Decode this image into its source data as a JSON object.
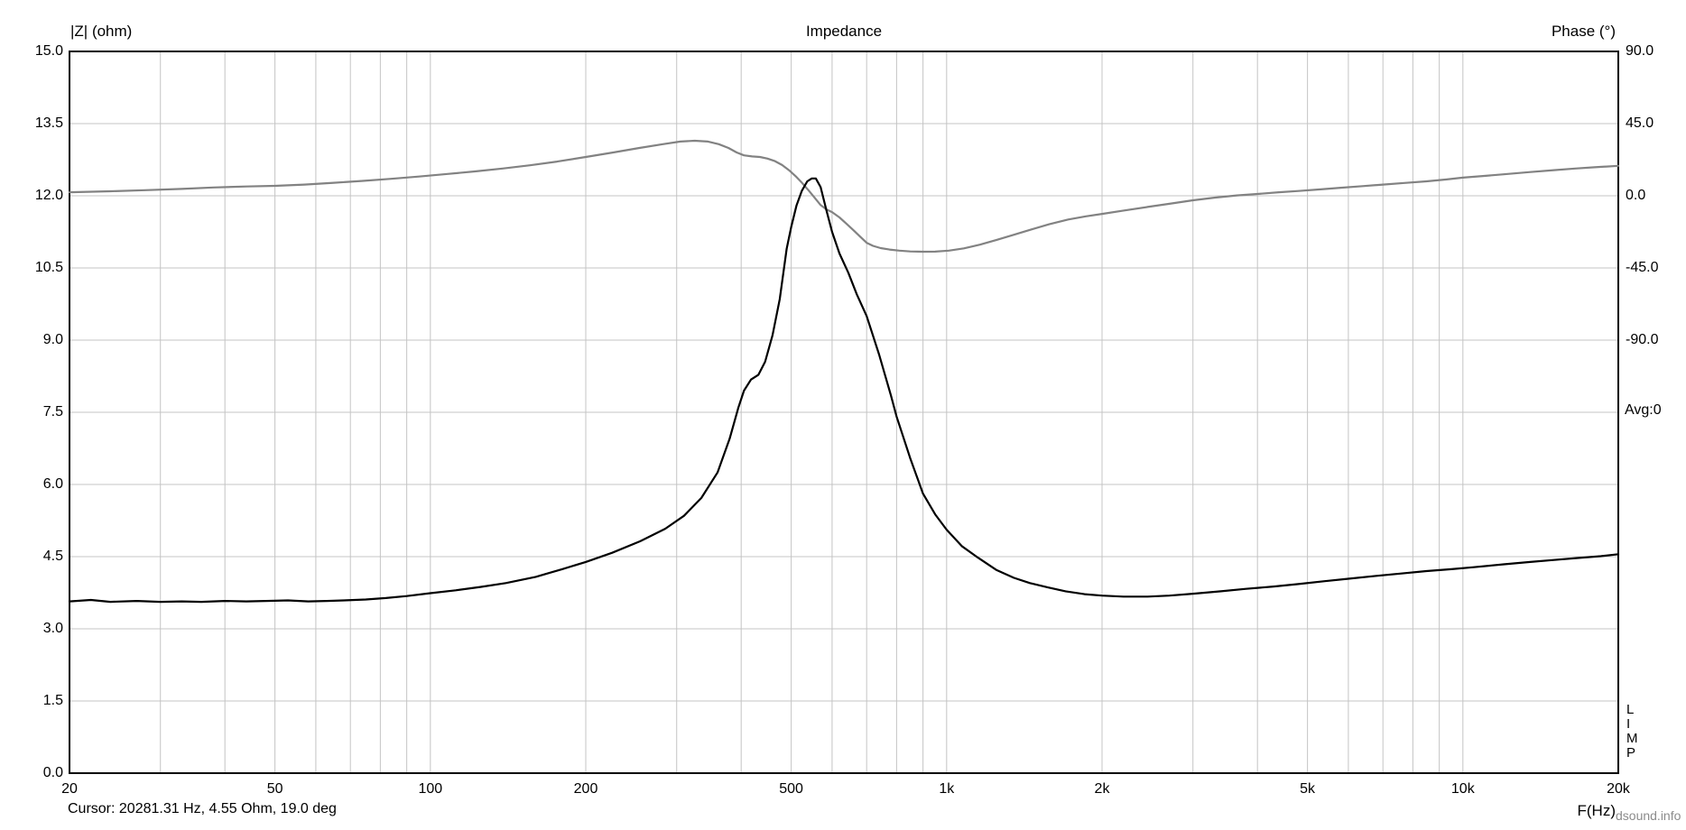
{
  "header": {
    "left_axis_label": "|Z| (ohm)",
    "title": "Impedance",
    "right_axis_label": "Phase (°)"
  },
  "side": {
    "avg_label": "Avg:0",
    "app_name_vertical": [
      "L",
      "I",
      "M",
      "P"
    ]
  },
  "footer": {
    "cursor_text": "Cursor: 20281.31 Hz, 4.55 Ohm, 19.0 deg",
    "x_axis_label": "F(Hz)",
    "watermark": "dsound.info"
  },
  "chart_data": {
    "type": "line",
    "title": "Impedance",
    "grid": true,
    "colors": {
      "background": "#ffffff",
      "grid": "#c4c4c4",
      "border": "#000000",
      "impedance_curve": "#000000",
      "phase_curve": "#828282"
    },
    "x_axis": {
      "label": "F(Hz)",
      "scale": "log",
      "min_hz": 20,
      "max_hz": 20000,
      "tick_values": [
        20,
        50,
        100,
        200,
        500,
        1000,
        2000,
        5000,
        10000,
        20000
      ],
      "tick_labels": [
        "20",
        "50",
        "100",
        "200",
        "500",
        "1k",
        "2k",
        "5k",
        "10k",
        "20k"
      ],
      "minor_grid_values": [
        30,
        40,
        50,
        60,
        70,
        80,
        90,
        100,
        200,
        300,
        400,
        500,
        600,
        700,
        800,
        900,
        1000,
        2000,
        3000,
        4000,
        5000,
        6000,
        7000,
        8000,
        9000,
        10000
      ]
    },
    "y_left_axis": {
      "label": "|Z| (ohm)",
      "min": 0,
      "max": 15,
      "tick_step": 1.5,
      "tick_labels": [
        "15.0",
        "13.5",
        "12.0",
        "10.5",
        "9.0",
        "7.5",
        "6.0",
        "4.5",
        "3.0",
        "1.5",
        "0.0"
      ]
    },
    "y_right_axis": {
      "label": "Phase (°)",
      "tick_labels": [
        "90.0",
        "45.0",
        "0.0",
        "-45.0",
        "-90.0"
      ],
      "tick_values_deg": [
        90,
        45,
        0,
        -45,
        -90
      ],
      "deg_per_division": 45,
      "zero_deg_aligned_with_ohm": 12
    },
    "series": [
      {
        "name": "impedance",
        "unit": "ohm",
        "axis": "left",
        "color": "#000000",
        "points": [
          [
            20,
            3.57
          ],
          [
            22,
            3.6
          ],
          [
            24,
            3.56
          ],
          [
            27,
            3.58
          ],
          [
            30,
            3.56
          ],
          [
            33,
            3.57
          ],
          [
            36,
            3.56
          ],
          [
            40,
            3.58
          ],
          [
            44,
            3.57
          ],
          [
            48,
            3.58
          ],
          [
            53,
            3.59
          ],
          [
            58,
            3.57
          ],
          [
            63,
            3.58
          ],
          [
            68,
            3.59
          ],
          [
            75,
            3.61
          ],
          [
            82,
            3.64
          ],
          [
            90,
            3.68
          ],
          [
            100,
            3.74
          ],
          [
            112,
            3.8
          ],
          [
            125,
            3.87
          ],
          [
            140,
            3.95
          ],
          [
            160,
            4.08
          ],
          [
            180,
            4.24
          ],
          [
            200,
            4.39
          ],
          [
            225,
            4.58
          ],
          [
            255,
            4.82
          ],
          [
            285,
            5.08
          ],
          [
            310,
            5.35
          ],
          [
            335,
            5.72
          ],
          [
            360,
            6.25
          ],
          [
            380,
            6.95
          ],
          [
            395,
            7.6
          ],
          [
            405,
            7.95
          ],
          [
            418,
            8.18
          ],
          [
            432,
            8.28
          ],
          [
            445,
            8.55
          ],
          [
            460,
            9.1
          ],
          [
            475,
            9.85
          ],
          [
            490,
            10.9
          ],
          [
            500,
            11.35
          ],
          [
            512,
            11.8
          ],
          [
            524,
            12.1
          ],
          [
            537,
            12.3
          ],
          [
            548,
            12.36
          ],
          [
            558,
            12.36
          ],
          [
            570,
            12.18
          ],
          [
            585,
            11.7
          ],
          [
            600,
            11.25
          ],
          [
            620,
            10.8
          ],
          [
            645,
            10.4
          ],
          [
            670,
            9.95
          ],
          [
            700,
            9.5
          ],
          [
            740,
            8.7
          ],
          [
            780,
            7.85
          ],
          [
            800,
            7.41
          ],
          [
            850,
            6.55
          ],
          [
            900,
            5.81
          ],
          [
            950,
            5.38
          ],
          [
            1000,
            5.06
          ],
          [
            1070,
            4.72
          ],
          [
            1150,
            4.48
          ],
          [
            1250,
            4.22
          ],
          [
            1350,
            4.06
          ],
          [
            1450,
            3.95
          ],
          [
            1570,
            3.86
          ],
          [
            1700,
            3.78
          ],
          [
            1850,
            3.72
          ],
          [
            2000,
            3.69
          ],
          [
            2200,
            3.67
          ],
          [
            2450,
            3.67
          ],
          [
            2700,
            3.69
          ],
          [
            3000,
            3.73
          ],
          [
            3400,
            3.78
          ],
          [
            3800,
            3.83
          ],
          [
            4300,
            3.88
          ],
          [
            4800,
            3.93
          ],
          [
            5400,
            3.99
          ],
          [
            6000,
            4.04
          ],
          [
            6800,
            4.1
          ],
          [
            7600,
            4.15
          ],
          [
            8500,
            4.2
          ],
          [
            9500,
            4.24
          ],
          [
            10500,
            4.28
          ],
          [
            12000,
            4.34
          ],
          [
            13500,
            4.39
          ],
          [
            15000,
            4.43
          ],
          [
            17000,
            4.48
          ],
          [
            18500,
            4.51
          ],
          [
            20000,
            4.55
          ]
        ]
      },
      {
        "name": "phase",
        "unit": "deg",
        "axis": "right",
        "color": "#828282",
        "points": [
          [
            20,
            2.2
          ],
          [
            24,
            2.8
          ],
          [
            28,
            3.5
          ],
          [
            33,
            4.3
          ],
          [
            38,
            5.2
          ],
          [
            44,
            5.8
          ],
          [
            50,
            6.2
          ],
          [
            57,
            7.0
          ],
          [
            65,
            8.1
          ],
          [
            74,
            9.3
          ],
          [
            84,
            10.6
          ],
          [
            95,
            12.0
          ],
          [
            108,
            13.6
          ],
          [
            122,
            15.2
          ],
          [
            138,
            17.0
          ],
          [
            156,
            19.0
          ],
          [
            176,
            21.3
          ],
          [
            200,
            24.2
          ],
          [
            226,
            27.0
          ],
          [
            254,
            29.8
          ],
          [
            282,
            32.2
          ],
          [
            305,
            33.8
          ],
          [
            325,
            34.3
          ],
          [
            345,
            33.8
          ],
          [
            362,
            32.2
          ],
          [
            378,
            29.8
          ],
          [
            392,
            27.0
          ],
          [
            405,
            25.2
          ],
          [
            420,
            24.5
          ],
          [
            435,
            24.2
          ],
          [
            450,
            23.2
          ],
          [
            465,
            21.6
          ],
          [
            480,
            19.2
          ],
          [
            495,
            16.0
          ],
          [
            510,
            12.2
          ],
          [
            525,
            8.0
          ],
          [
            540,
            3.5
          ],
          [
            555,
            -1.2
          ],
          [
            570,
            -5.8
          ],
          [
            585,
            -8.5
          ],
          [
            600,
            -10.2
          ],
          [
            620,
            -13.5
          ],
          [
            640,
            -17.5
          ],
          [
            660,
            -21.5
          ],
          [
            680,
            -25.5
          ],
          [
            700,
            -29.3
          ],
          [
            720,
            -31.2
          ],
          [
            745,
            -32.6
          ],
          [
            775,
            -33.5
          ],
          [
            810,
            -34.2
          ],
          [
            850,
            -34.7
          ],
          [
            900,
            -34.9
          ],
          [
            950,
            -34.8
          ],
          [
            1010,
            -34.2
          ],
          [
            1080,
            -32.8
          ],
          [
            1160,
            -30.5
          ],
          [
            1250,
            -27.5
          ],
          [
            1350,
            -24.3
          ],
          [
            1460,
            -21.0
          ],
          [
            1580,
            -17.8
          ],
          [
            1720,
            -14.8
          ],
          [
            1860,
            -12.8
          ],
          [
            2000,
            -11.3
          ],
          [
            2200,
            -9.2
          ],
          [
            2450,
            -7.0
          ],
          [
            2700,
            -5.0
          ],
          [
            3000,
            -2.8
          ],
          [
            3300,
            -1.2
          ],
          [
            3650,
            0.2
          ],
          [
            4000,
            1.1
          ],
          [
            4400,
            2.2
          ],
          [
            4800,
            3.0
          ],
          [
            5300,
            4.0
          ],
          [
            5800,
            5.0
          ],
          [
            6400,
            6.0
          ],
          [
            7000,
            7.0
          ],
          [
            7700,
            8.0
          ],
          [
            8500,
            9.0
          ],
          [
            9300,
            10.2
          ],
          [
            10000,
            11.3
          ],
          [
            11000,
            12.4
          ],
          [
            12000,
            13.4
          ],
          [
            13500,
            14.8
          ],
          [
            15000,
            16.0
          ],
          [
            16500,
            17.0
          ],
          [
            18000,
            17.8
          ],
          [
            20000,
            18.7
          ]
        ]
      }
    ],
    "cursor": {
      "frequency_hz": "20281.31",
      "impedance_ohm": "4.55",
      "phase_deg": "19.0"
    }
  }
}
